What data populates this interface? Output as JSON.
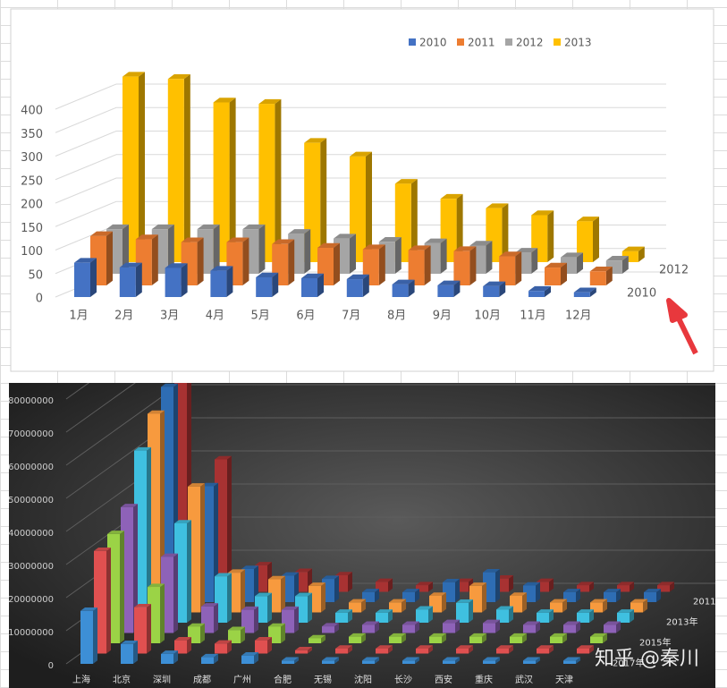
{
  "chart_data": [
    {
      "type": "bar3d",
      "categories": [
        "1月",
        "2月",
        "3月",
        "4月",
        "5月",
        "6月",
        "7月",
        "8月",
        "9月",
        "10月",
        "11月",
        "12月"
      ],
      "series": [
        {
          "name": "2010",
          "color": "#4472c4",
          "values": [
            73,
            63,
            62,
            56,
            42,
            40,
            38,
            27,
            25,
            23,
            13,
            10
          ]
        },
        {
          "name": "2011",
          "color": "#ed7d31",
          "values": [
            105,
            98,
            92,
            92,
            88,
            80,
            77,
            75,
            73,
            62,
            38,
            30
          ]
        },
        {
          "name": "2012",
          "color": "#a5a5a5",
          "values": [
            95,
            95,
            95,
            95,
            85,
            75,
            68,
            65,
            60,
            45,
            35,
            28
          ]
        },
        {
          "name": "2013",
          "color": "#ffc000",
          "values": [
            395,
            390,
            340,
            337,
            254,
            225,
            167,
            135,
            115,
            100,
            87,
            23
          ]
        }
      ],
      "depth_labels": [
        "2010",
        "2012"
      ],
      "ylim": [
        0,
        400
      ],
      "yticks": [
        0,
        50,
        100,
        150,
        200,
        250,
        300,
        350,
        400
      ],
      "grid": true,
      "legend": "top"
    },
    {
      "type": "bar3d",
      "categories": [
        "上海",
        "北京",
        "深圳",
        "成都",
        "广州",
        "合肥",
        "无锡",
        "沈阳",
        "长沙",
        "西安",
        "重庆",
        "武汉",
        "天津"
      ],
      "series": [
        {
          "name": null,
          "color": "#3d8fd6",
          "values": [
            16000000,
            6000000,
            3000000,
            2000000,
            2500000,
            1000000,
            1000000,
            1000000,
            1000000,
            1000000,
            1000000,
            1000000,
            1000000
          ]
        },
        {
          "name": "2017年",
          "color": "#e05050",
          "values": [
            31000000,
            14000000,
            4000000,
            3000000,
            4000000,
            1000000,
            1500000,
            1500000,
            1500000,
            1500000,
            1500000,
            1500000,
            1500000
          ]
        },
        {
          "name": null,
          "color": "#9bd346",
          "values": [
            33000000,
            17000000,
            5000000,
            4000000,
            5000000,
            1500000,
            2000000,
            2000000,
            2000000,
            2000000,
            2000000,
            2000000,
            2000000
          ]
        },
        {
          "name": "2015年",
          "color": "#8e62b8",
          "values": [
            38000000,
            23000000,
            8000000,
            7000000,
            7000000,
            2000000,
            2500000,
            2500000,
            3000000,
            3000000,
            2500000,
            2500000,
            2500000
          ]
        },
        {
          "name": null,
          "color": "#3fc0e0",
          "values": [
            52000000,
            30000000,
            14000000,
            8000000,
            8000000,
            3000000,
            3000000,
            4000000,
            6000000,
            4000000,
            3000000,
            3000000,
            3000000
          ]
        },
        {
          "name": "2013年",
          "color": "#f79a3e",
          "values": [
            60000000,
            38000000,
            12000000,
            10000000,
            8000000,
            3000000,
            3000000,
            5000000,
            8000000,
            5000000,
            3000000,
            3000000,
            3000000
          ]
        },
        {
          "name": null,
          "color": "#2e6db4",
          "values": [
            65000000,
            35000000,
            10000000,
            8000000,
            7000000,
            3000000,
            3000000,
            6000000,
            9000000,
            5000000,
            3000000,
            3000000,
            3000000
          ]
        },
        {
          "name": "2011年",
          "color": "#a83232",
          "values": [
            90000000,
            40000000,
            8000000,
            6000000,
            5000000,
            3000000,
            2000000,
            3000000,
            4000000,
            3000000,
            2000000,
            2000000,
            2000000
          ]
        }
      ],
      "ylim": [
        0,
        80000000
      ],
      "yticks": [
        0,
        10000000,
        20000000,
        30000000,
        40000000,
        50000000,
        60000000,
        70000000,
        80000000
      ],
      "grid": true,
      "watermark": "知乎 @秦川"
    }
  ]
}
